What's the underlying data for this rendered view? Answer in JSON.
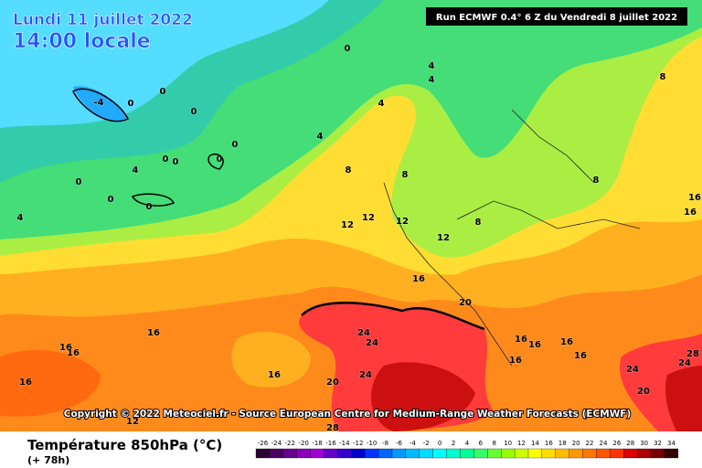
{
  "header": {
    "date": "Lundi 11 juillet 2022",
    "time": "14:00 locale",
    "run": "Run ECMWF 0.4° 6 Z du Vendredi 8 juillet 2022"
  },
  "copyright": "Copyright © 2022 Meteociel.fr - Source European Centre for Medium-Range Weather Forecasts (ECMWF)",
  "footer": {
    "title": "Température 850hPa (°C)",
    "subtitle": "(+ 78h)"
  },
  "contour_labels": [
    0,
    -4,
    0,
    0,
    0,
    0,
    0,
    0,
    0,
    4,
    0,
    0,
    0,
    4,
    4,
    4,
    4,
    4,
    8,
    8,
    8,
    8,
    12,
    12,
    12,
    12,
    8,
    16,
    20,
    16,
    16,
    16,
    16,
    16,
    24,
    24,
    24,
    20,
    16,
    16,
    16,
    16,
    16,
    24,
    24,
    28,
    20,
    16,
    16,
    28,
    12
  ],
  "colorbar": {
    "ticks": [
      -26,
      -24,
      -22,
      -20,
      -18,
      -16,
      -14,
      -12,
      -10,
      -8,
      -6,
      -4,
      -2,
      0,
      2,
      4,
      6,
      8,
      10,
      12,
      14,
      16,
      18,
      20,
      22,
      24,
      26,
      28,
      30,
      32,
      34
    ],
    "colors": [
      "#2b0033",
      "#4b0063",
      "#6a0090",
      "#8a00b8",
      "#a100d6",
      "#6600cc",
      "#3300cc",
      "#0000cc",
      "#0033ff",
      "#0066ff",
      "#0099ff",
      "#00bbff",
      "#00ddff",
      "#00ffff",
      "#00ffcc",
      "#00ff99",
      "#33ff66",
      "#66ff33",
      "#99ff00",
      "#ccff00",
      "#ffff00",
      "#ffdd00",
      "#ffbb00",
      "#ff9900",
      "#ff7700",
      "#ff5500",
      "#ff3300",
      "#dd0000",
      "#aa0000",
      "#770000",
      "#330000"
    ]
  }
}
